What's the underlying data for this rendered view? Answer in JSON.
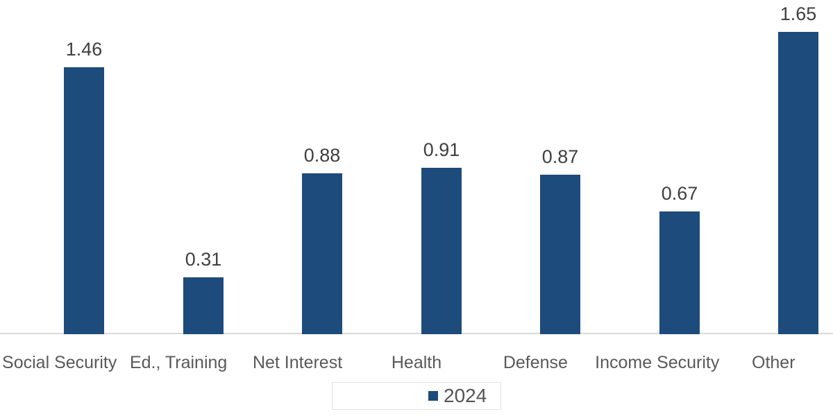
{
  "chart_data": {
    "type": "bar",
    "categories": [
      "Social Security",
      "Ed., Training",
      "Net Interest",
      "Health",
      "Defense",
      "Income Security",
      "Other"
    ],
    "series": [
      {
        "name": "2024",
        "values": [
          1.46,
          0.31,
          0.88,
          0.91,
          0.87,
          0.67,
          1.65
        ]
      }
    ],
    "value_labels": [
      "1.46",
      "0.31",
      "0.88",
      "0.91",
      "0.87",
      "0.67",
      "1.65"
    ],
    "title": "",
    "xlabel": "",
    "ylabel": "",
    "ylim": [
      0,
      1.83
    ],
    "grid": false,
    "axis_ticks_visible": false,
    "legend_position": "bottom-center",
    "colors": {
      "bar": "#1d4b7c",
      "value_label": "#3f3f3f",
      "category_label": "#595959",
      "axis_line": "#d9d9d9",
      "legend_border": "#e2e2e2",
      "legend_text": "#555555",
      "background": "#ffffff"
    }
  },
  "legend": {
    "items": [
      {
        "label": "2024",
        "swatch_color": "#1d4b7c"
      }
    ]
  }
}
